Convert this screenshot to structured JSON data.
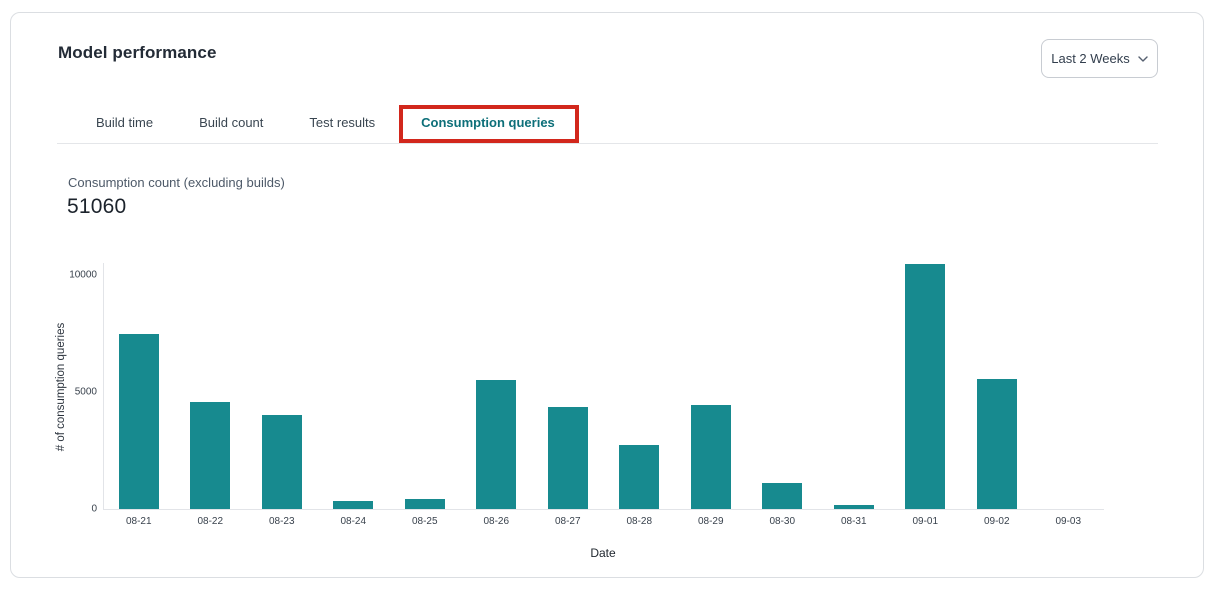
{
  "header": {
    "title": "Model performance",
    "date_range_label": "Last 2 Weeks"
  },
  "icons": {
    "date_range_chevron": "chevron-down"
  },
  "tabs": [
    {
      "label": "Build time",
      "active": false
    },
    {
      "label": "Build count",
      "active": false
    },
    {
      "label": "Test results",
      "active": false
    },
    {
      "label": "Consumption queries",
      "active": true
    }
  ],
  "annotation": {
    "type": "highlight-box",
    "target_tab": "Consumption queries",
    "color": "#d2271c"
  },
  "metric": {
    "label": "Consumption count (excluding builds)",
    "value": "51060"
  },
  "chart_data": {
    "type": "bar",
    "title": "",
    "categories": [
      "08-21",
      "08-22",
      "08-23",
      "08-24",
      "08-25",
      "08-26",
      "08-27",
      "08-28",
      "08-29",
      "08-30",
      "08-31",
      "09-01",
      "09-02",
      "09-03"
    ],
    "values": [
      7450,
      4560,
      4020,
      330,
      430,
      5480,
      4350,
      2720,
      4440,
      1120,
      190,
      10430,
      5540,
      0
    ],
    "xlabel": "Date",
    "ylabel": "# of consumption queries",
    "ylim": [
      0,
      10000
    ],
    "yticks": [
      "0",
      "5000",
      "10000"
    ],
    "ytick_values": [
      0,
      5000,
      10000
    ],
    "grid": false,
    "legend": "none",
    "bar_color": "#178a8f"
  },
  "colors": {
    "bar_teal": "#178a8f",
    "active_tab_teal": "#0d6f79",
    "annotation_red": "#d2271c",
    "card_border": "#dbdee2"
  }
}
